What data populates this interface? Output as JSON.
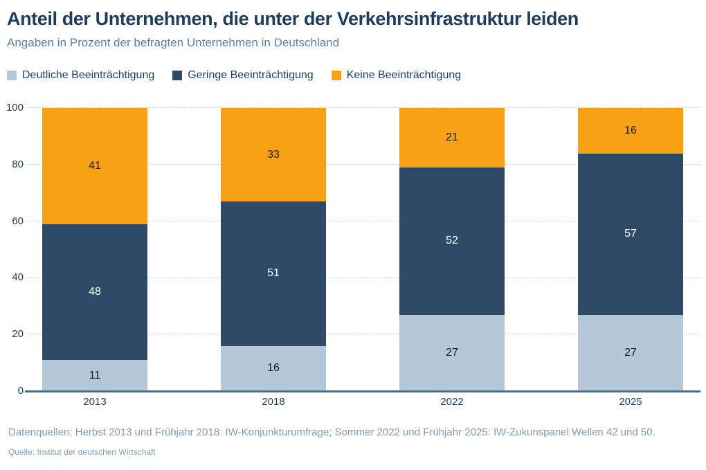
{
  "header": {
    "title": "Anteil der Unternehmen, die unter der Verkehrsinfrastruktur leiden",
    "subtitle": "Angaben in Prozent der befragten Unternehmen in Deutschland"
  },
  "chart_data": {
    "type": "bar",
    "stacked": true,
    "title": "Anteil der Unternehmen, die unter der Verkehrsinfrastruktur leiden",
    "subtitle": "Angaben in Prozent der befragten Unternehmen in Deutschland",
    "categories": [
      "2013",
      "2018",
      "2022",
      "2025"
    ],
    "series": [
      {
        "name": "Deutliche Beeinträchtigung",
        "color": "#b5c8d8",
        "label_color": "#1c1c1c",
        "values": [
          11,
          16,
          27,
          27
        ]
      },
      {
        "name": "Geringe Beeinträchtigung",
        "color": "#2e4a66",
        "label_color": "#ffffff",
        "values": [
          48,
          51,
          52,
          57
        ]
      },
      {
        "name": "Keine Beeinträchtigung",
        "color": "#f7a113",
        "label_color": "#1c1c1c",
        "values": [
          41,
          33,
          21,
          16
        ]
      }
    ],
    "ylabel": "",
    "xlabel": "",
    "ylim": [
      0,
      100
    ],
    "yticks": [
      0,
      20,
      40,
      60,
      80,
      100
    ],
    "grid": "horizontal-dashed",
    "legend_position": "top",
    "colors": {
      "gridline": "#c7d6e3",
      "axis_line": "#4e6d8c",
      "tick_label": "#1e3c5c"
    }
  },
  "footer": {
    "datasources": "Datenquellen: Herbst 2013 und Frühjahr 2018: IW-Konjunkturumfrage; Sommer 2022 und Frühjahr 2025: IW-Zukunspanel Wellen 42 und 50.",
    "source": "Quelle: Institut der deutschen Wirtschaft"
  }
}
